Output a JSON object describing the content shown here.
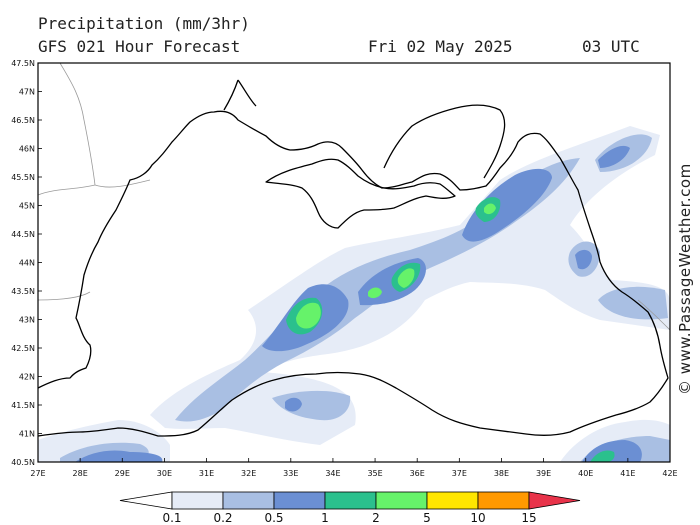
{
  "header": {
    "title": "Precipitation (mm/3hr)",
    "subtitle": "GFS 021 Hour Forecast",
    "date": "Fri 02 May 2025",
    "time": "03 UTC"
  },
  "watermark": "© www.PassageWeather.com",
  "axes": {
    "lat_labels": [
      "47.5N",
      "47N",
      "46.5N",
      "46N",
      "45.5N",
      "45N",
      "44.5N",
      "44N",
      "43.5N",
      "43N",
      "42.5N",
      "42N",
      "41.5N",
      "41N",
      "40.5N"
    ],
    "lon_labels": [
      "27E",
      "28E",
      "29E",
      "30E",
      "31E",
      "32E",
      "33E",
      "34E",
      "35E",
      "36E",
      "37E",
      "38E",
      "39E",
      "40E",
      "41E",
      "42E"
    ]
  },
  "legend": {
    "labels": [
      "0.1",
      "0.2",
      "0.5",
      "1",
      "2",
      "5",
      "10",
      "15"
    ],
    "colors": [
      "#ffffff",
      "#e6ecf7",
      "#a9bfe3",
      "#6b8fd3",
      "#2bc08d",
      "#66f26a",
      "#ffe600",
      "#ff9900",
      "#e8334a"
    ]
  }
}
